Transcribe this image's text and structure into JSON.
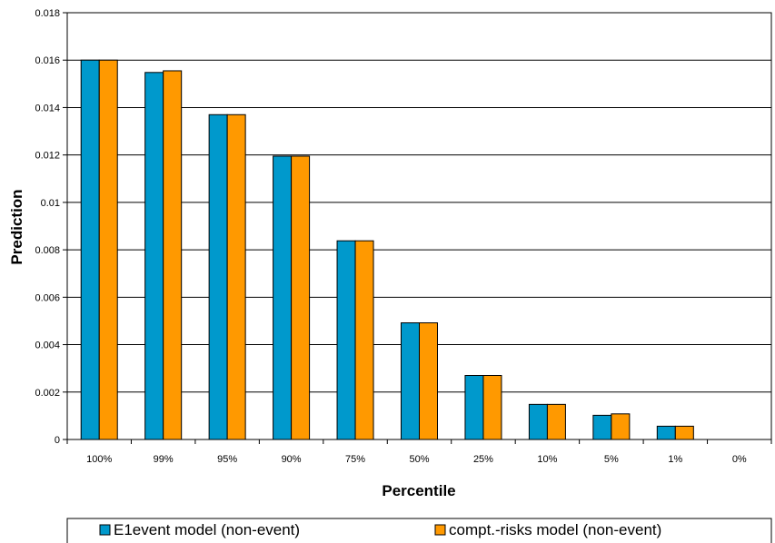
{
  "chart_data": {
    "type": "bar",
    "categories": [
      "100%",
      "99%",
      "95%",
      "90%",
      "75%",
      "50%",
      "25%",
      "10%",
      "5%",
      "1%",
      "0%"
    ],
    "series": [
      {
        "name": "E1event model (non-event)",
        "color": "#0099cc",
        "values": [
          0.016,
          0.01548,
          0.0137,
          0.01195,
          0.00838,
          0.00492,
          0.0027,
          0.00148,
          0.00102,
          0.00056,
          0
        ]
      },
      {
        "name": "compt.-risks model (non-event)",
        "color": "#ff9900",
        "values": [
          0.016,
          0.01555,
          0.0137,
          0.01195,
          0.00838,
          0.00492,
          0.0027,
          0.00148,
          0.00108,
          0.00056,
          0
        ]
      }
    ],
    "xlabel": "Percentile",
    "ylabel": "Prediction",
    "ylim": [
      0,
      0.018
    ],
    "yticks": [
      "0",
      "0.002",
      "0.004",
      "0.006",
      "0.008",
      "0.01",
      "0.012",
      "0.014",
      "0.016",
      "0.018"
    ],
    "grid": true,
    "legend_position": "bottom"
  }
}
